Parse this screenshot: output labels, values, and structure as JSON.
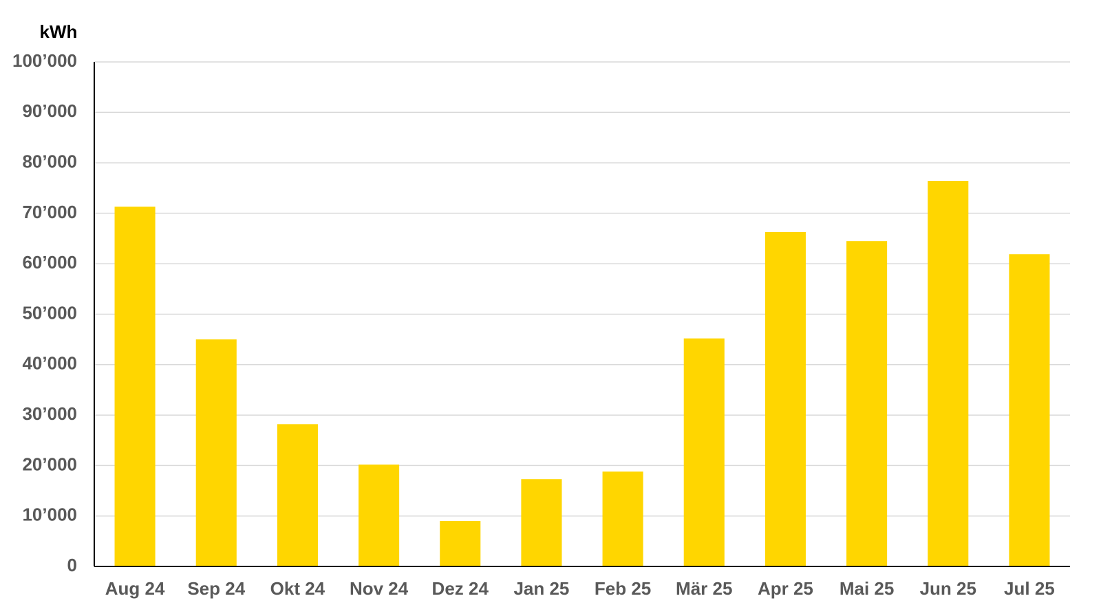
{
  "chart_data": {
    "type": "bar",
    "y_label": "kWh",
    "categories": [
      "Aug 24",
      "Sep 24",
      "Okt 24",
      "Nov 24",
      "Dez 24",
      "Jan 25",
      "Feb 25",
      "Mär 25",
      "Apr 25",
      "Mai 25",
      "Jun 25",
      "Jul 25"
    ],
    "values": [
      71300,
      45000,
      28200,
      20200,
      9000,
      17300,
      18800,
      45200,
      66300,
      64500,
      76400,
      61900
    ],
    "color": "#ffd600",
    "ylim": [
      0,
      100000
    ],
    "yticks": [
      0,
      {
        "value": 10000,
        "label": "10’000"
      },
      {
        "value": 20000,
        "label": "20’000"
      },
      {
        "value": 30000,
        "label": "30’000"
      },
      {
        "value": 40000,
        "label": "40’000"
      },
      {
        "value": 50000,
        "label": "50’000"
      },
      {
        "value": 60000,
        "label": "60’000"
      },
      {
        "value": 70000,
        "label": "70’000"
      },
      {
        "value": 80000,
        "label": "80’000"
      },
      {
        "value": 90000,
        "label": "90’000"
      },
      {
        "value": 100000,
        "label": "100’000"
      }
    ],
    "grid": true
  }
}
